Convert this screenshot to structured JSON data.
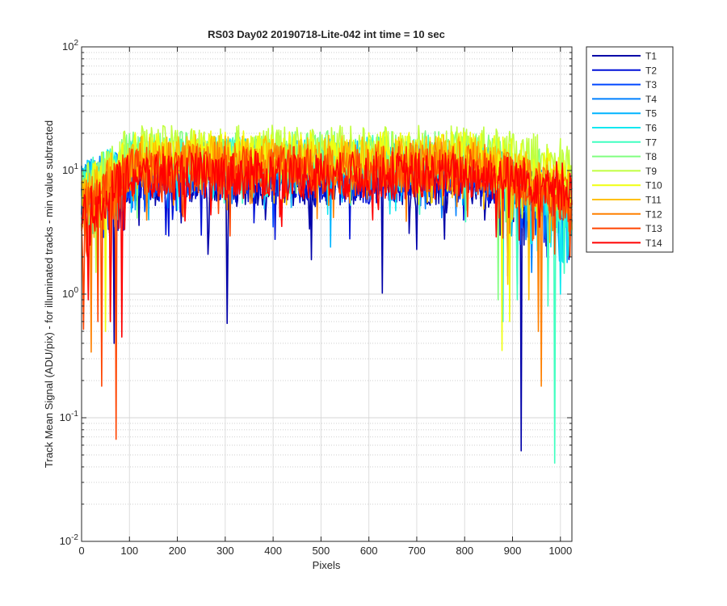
{
  "chart_data": {
    "type": "line",
    "title": "RS03 Day02 20190718-Lite-042 int time = 10 sec",
    "xlabel": "Pixels",
    "ylabel": "Track Mean Signal (ADU/pix) - for illuminated tracks - min value subtracted",
    "xlim": [
      0,
      1024
    ],
    "ylim": [
      0.01,
      100
    ],
    "yscale": "log",
    "grid": true,
    "minor_grid": true,
    "legend_position": "outside-right",
    "x_ticks": [
      0,
      100,
      200,
      300,
      400,
      500,
      600,
      700,
      800,
      900,
      1000
    ],
    "x_tick_labels": [
      "0",
      "100",
      "200",
      "300",
      "400",
      "500",
      "600",
      "700",
      "800",
      "900",
      "1000"
    ],
    "y_ticks": [
      0.01,
      0.1,
      1,
      10,
      100
    ],
    "y_tick_labels": [
      {
        "base": "10",
        "exp": "-2"
      },
      {
        "base": "10",
        "exp": "-1"
      },
      {
        "base": "10",
        "exp": "0"
      },
      {
        "base": "10",
        "exp": "1"
      },
      {
        "base": "10",
        "exp": "2"
      }
    ],
    "series": [
      {
        "name": "T1",
        "color": "#0000a8",
        "level": 8.5,
        "left": 6.5,
        "right": 6.0,
        "dips": [
          [
            305,
            0.58
          ],
          [
            628,
            1.02
          ],
          [
            918,
            0.054
          ],
          [
            68,
            0.4
          ],
          [
            265,
            2.1
          ],
          [
            480,
            1.9
          ],
          [
            700,
            2.3
          ]
        ]
      },
      {
        "name": "T2",
        "color": "#0010d8",
        "level": 9.0,
        "left": 7.0,
        "right": 5.5,
        "dips": [
          [
            250,
            3.0
          ],
          [
            560,
            2.8
          ],
          [
            890,
            1.4
          ]
        ]
      },
      {
        "name": "T3",
        "color": "#0048ff",
        "level": 10.0,
        "left": 7.5,
        "right": 5.0,
        "dips": [
          [
            400,
            3.5
          ],
          [
            910,
            1.2
          ]
        ]
      },
      {
        "name": "T4",
        "color": "#0080ff",
        "level": 11.5,
        "left": 8.0,
        "right": 5.0,
        "dips": [
          [
            180,
            5.0
          ],
          [
            940,
            1.5
          ]
        ]
      },
      {
        "name": "T5",
        "color": "#00b4ff",
        "level": 12.0,
        "left": 8.0,
        "right": 4.5,
        "dips": [
          [
            520,
            2.4
          ],
          [
            1015,
            1.8
          ]
        ]
      },
      {
        "name": "T6",
        "color": "#10e8f0",
        "level": 12.5,
        "left": 7.5,
        "right": 4.0,
        "dips": [
          [
            880,
            0.6
          ],
          [
            1000,
            1.0
          ]
        ]
      },
      {
        "name": "T7",
        "color": "#40ffc0",
        "level": 13.0,
        "left": 7.5,
        "right": 4.0,
        "dips": [
          [
            988,
            0.043
          ],
          [
            975,
            0.8
          ],
          [
            910,
            0.9
          ]
        ]
      },
      {
        "name": "T8",
        "color": "#80ff80",
        "level": 14.0,
        "left": 7.0,
        "right": 8.0,
        "dips": [
          [
            870,
            0.9
          ]
        ]
      },
      {
        "name": "T9",
        "color": "#c0ff40",
        "level": 15.5,
        "left": 7.0,
        "right": 12.0,
        "dips": [
          [
            30,
            1.5
          ]
        ]
      },
      {
        "name": "T10",
        "color": "#f0ff10",
        "level": 14.0,
        "left": 6.0,
        "right": 9.0,
        "dips": [
          [
            50,
            0.5
          ],
          [
            878,
            0.35
          ],
          [
            895,
            0.6
          ]
        ]
      },
      {
        "name": "T11",
        "color": "#ffc000",
        "level": 13.0,
        "left": 5.5,
        "right": 7.0,
        "dips": [
          [
            60,
            0.6
          ],
          [
            890,
            1.2
          ],
          [
            935,
            0.9
          ]
        ]
      },
      {
        "name": "T12",
        "color": "#ff8000",
        "level": 11.5,
        "left": 5.0,
        "right": 6.0,
        "dips": [
          [
            960,
            0.18
          ],
          [
            20,
            0.34
          ],
          [
            955,
            0.5
          ]
        ]
      },
      {
        "name": "T13",
        "color": "#ff4400",
        "level": 10.5,
        "left": 4.5,
        "right": 6.0,
        "dips": [
          [
            73,
            0.067
          ],
          [
            42,
            0.18
          ],
          [
            5,
            0.52
          ],
          [
            35,
            0.6
          ]
        ]
      },
      {
        "name": "T14",
        "color": "#ff0000",
        "level": 9.5,
        "left": 4.0,
        "right": 8.0,
        "dips": [
          [
            15,
            0.9
          ],
          [
            85,
            0.45
          ],
          [
            60,
            0.6
          ]
        ]
      }
    ]
  }
}
